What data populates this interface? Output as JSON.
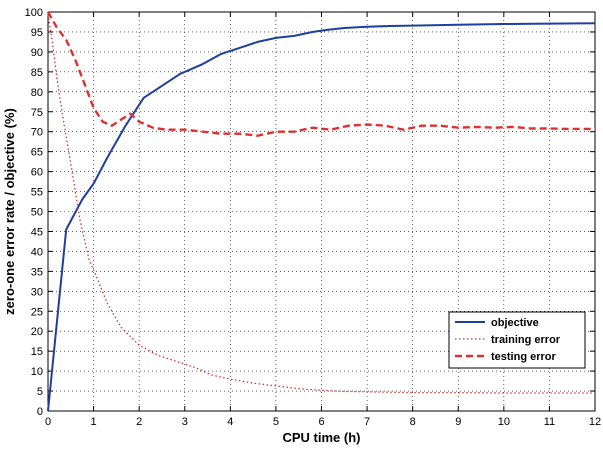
{
  "chart_data": {
    "type": "line",
    "title": "",
    "xlabel": "CPU time (h)",
    "ylabel": "zero-one error rate / objective (%)",
    "xlim": [
      0,
      12
    ],
    "ylim": [
      0,
      100
    ],
    "xticks": [
      0,
      1,
      2,
      3,
      4,
      5,
      6,
      7,
      8,
      9,
      10,
      11,
      12
    ],
    "yticks": [
      0,
      5,
      10,
      15,
      20,
      25,
      30,
      35,
      40,
      45,
      50,
      55,
      60,
      65,
      70,
      75,
      80,
      85,
      90,
      95,
      100
    ],
    "grid": true,
    "legend_position": "bottom-right",
    "series": [
      {
        "name": "objective",
        "color": "#1f3f9e",
        "style": "solid",
        "x": [
          0,
          0.4,
          0.75,
          1.0,
          1.3,
          1.7,
          2.1,
          2.5,
          2.9,
          3.1,
          3.4,
          3.8,
          4.2,
          4.6,
          5.0,
          5.4,
          5.8,
          6.1,
          6.5,
          7.0,
          7.5,
          8.0,
          9.0,
          10.0,
          11.0,
          12.0
        ],
        "y": [
          0,
          45.5,
          53,
          57,
          63.5,
          71.5,
          78.5,
          81.5,
          84.5,
          85.5,
          87,
          89.5,
          91,
          92.5,
          93.5,
          94,
          95,
          95.5,
          96,
          96.3,
          96.5,
          96.6,
          96.8,
          97,
          97.1,
          97.2
        ]
      },
      {
        "name": "training error",
        "color": "#e03030",
        "style": "dotted",
        "x": [
          0,
          0.1,
          0.2,
          0.35,
          0.5,
          0.7,
          0.9,
          1.05,
          1.3,
          1.6,
          2.0,
          2.4,
          2.8,
          3.2,
          3.6,
          4.0,
          4.5,
          5.0,
          5.5,
          6.0,
          6.5,
          7.0,
          8.0,
          9.0,
          10.0,
          11.0,
          12.0
        ],
        "y": [
          99.5,
          92,
          83,
          72,
          62,
          48,
          38,
          34,
          27,
          21,
          16.5,
          14,
          12.5,
          11,
          9,
          8,
          7,
          6.3,
          5.6,
          5.2,
          4.9,
          4.8,
          4.6,
          4.6,
          4.5,
          4.5,
          4.5
        ]
      },
      {
        "name": "testing error",
        "color": "#e03030",
        "style": "dashed",
        "x": [
          0,
          0.2,
          0.4,
          0.6,
          0.8,
          1.0,
          1.2,
          1.4,
          1.6,
          1.8,
          2.0,
          2.3,
          2.6,
          3.0,
          3.4,
          3.8,
          4.2,
          4.6,
          5.0,
          5.4,
          5.8,
          6.2,
          6.6,
          7.0,
          7.4,
          7.8,
          8.2,
          8.6,
          9.0,
          9.4,
          9.8,
          10.2,
          10.6,
          11.0,
          11.4,
          12.0
        ],
        "y": [
          100,
          96,
          93,
          88,
          82,
          76,
          72.5,
          71.5,
          73,
          74.5,
          72.5,
          71,
          70.5,
          70.5,
          70,
          69.5,
          69.5,
          69,
          70,
          70,
          71,
          70.5,
          71.5,
          71.8,
          71.5,
          70.5,
          71.5,
          71.5,
          71,
          71.2,
          71,
          71.2,
          70.8,
          70.8,
          70.7,
          70.7
        ]
      }
    ]
  }
}
